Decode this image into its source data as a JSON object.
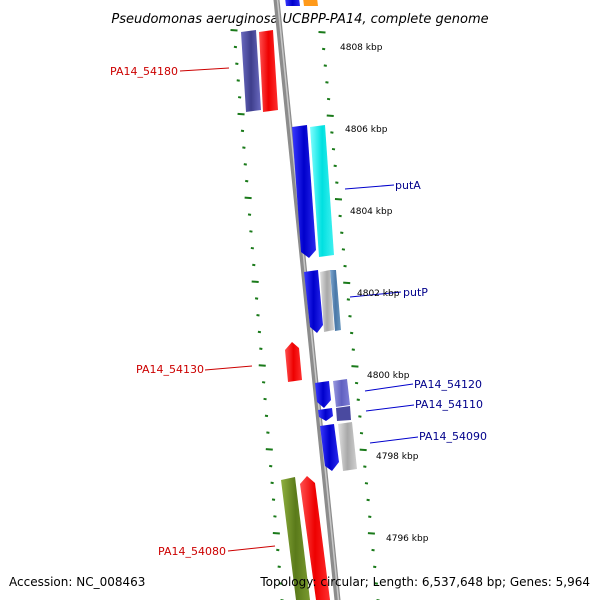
{
  "title": "Pseudomonas aeruginosa UCBPP-PA14, complete genome",
  "footer": {
    "accession": "Accession: NC_008463",
    "summary": "Topology: circular; Length: 6,537,648 bp; Genes: 5,964"
  },
  "scale_labels": [
    "4808 kbp",
    "4806 kbp",
    "4804 kbp",
    "4802 kbp",
    "4800 kbp",
    "4798 kbp",
    "4796 kbp"
  ],
  "gene_labels_left": [
    "PA14_54180",
    "PA14_54130",
    "PA14_54080"
  ],
  "gene_labels_right": [
    "putA",
    "putP",
    "PA14_54120",
    "PA14_54110",
    "PA14_54090"
  ],
  "colors": {
    "backbone": "#8c8c8c",
    "tick": "#1a7a1a",
    "forward_blue": "#1010dd",
    "cyan": "#00e5e5",
    "slate": "#4a4aa0",
    "red": "#ff0000",
    "olive": "#6b8e23",
    "gray": "#b0b0b0",
    "orange": "#ff8c00"
  }
}
